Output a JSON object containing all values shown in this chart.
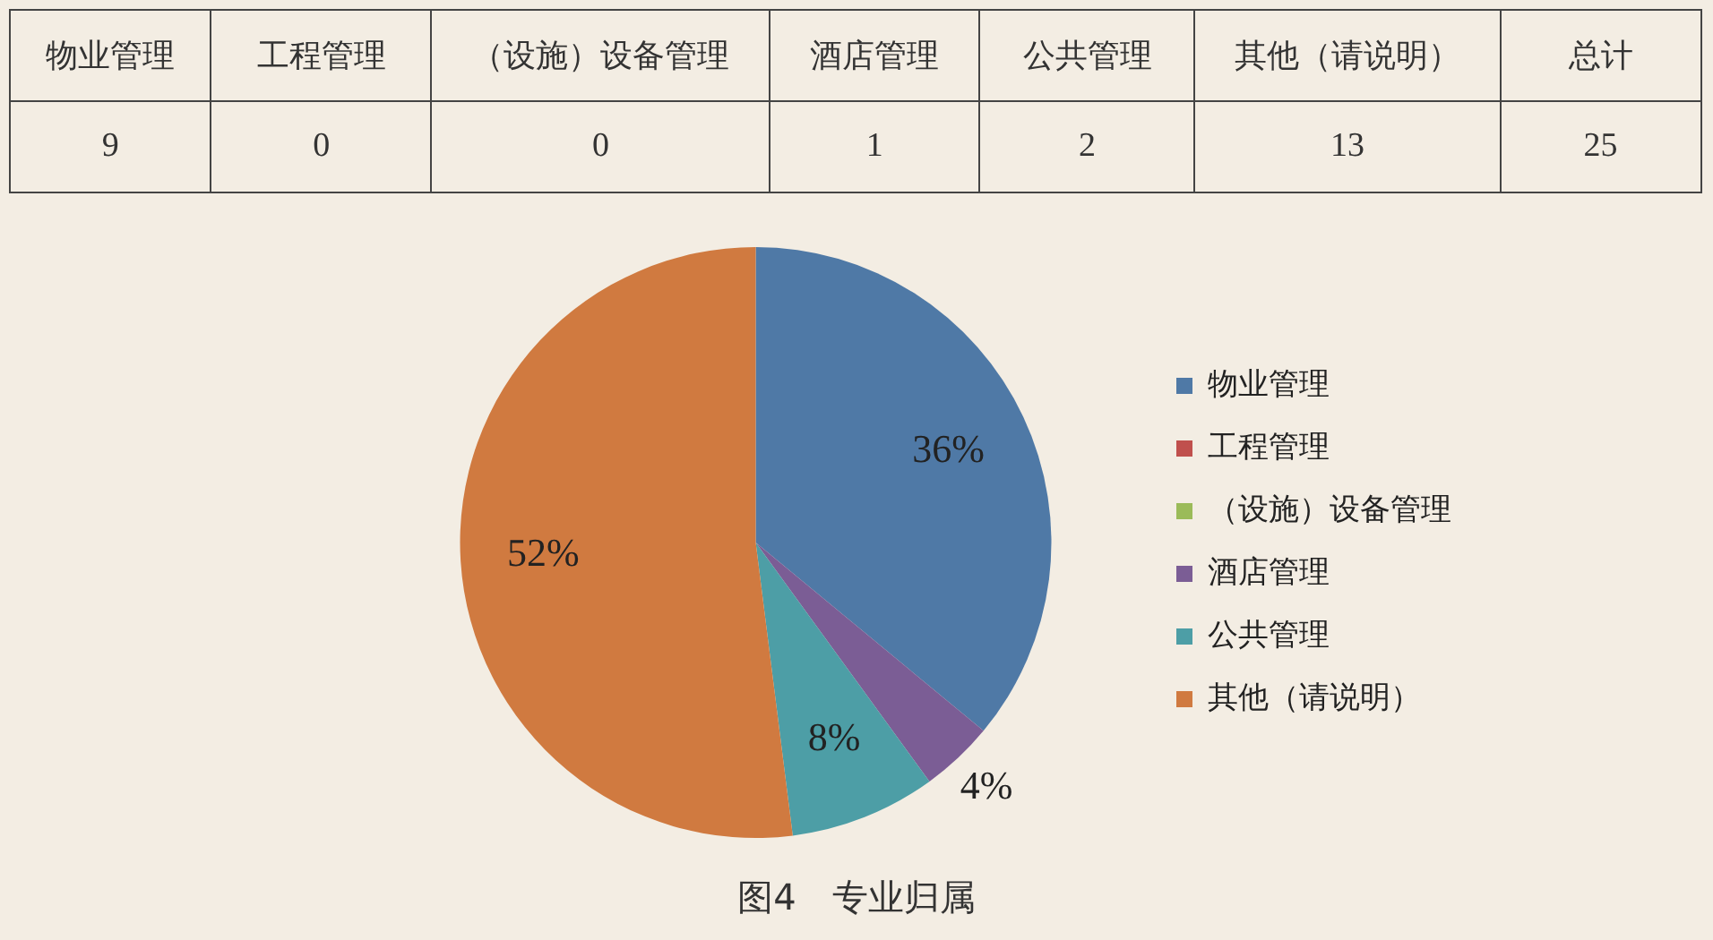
{
  "chart_data": [
    {
      "type": "other",
      "categories": [
        "物业管理",
        "工程管理",
        "（设施）设备管理",
        "酒店管理",
        "公共管理",
        "其他（请说明）",
        "总计"
      ],
      "values": [
        9,
        0,
        0,
        1,
        2,
        13,
        25
      ],
      "data_labels": true
    },
    {
      "type": "pie",
      "title": "图4　专业归属",
      "categories": [
        "物业管理",
        "工程管理",
        "（设施）设备管理",
        "酒店管理",
        "公共管理",
        "其他（请说明）"
      ],
      "values": [
        36,
        0,
        0,
        4,
        8,
        52
      ],
      "value_labels": [
        "36%",
        null,
        null,
        "4%",
        "8%",
        "52%"
      ],
      "colors": [
        "#4f79a6",
        "#c0504d",
        "#9bbb59",
        "#7b5d95",
        "#4d9ea6",
        "#d07a40"
      ],
      "legend": "right"
    }
  ]
}
